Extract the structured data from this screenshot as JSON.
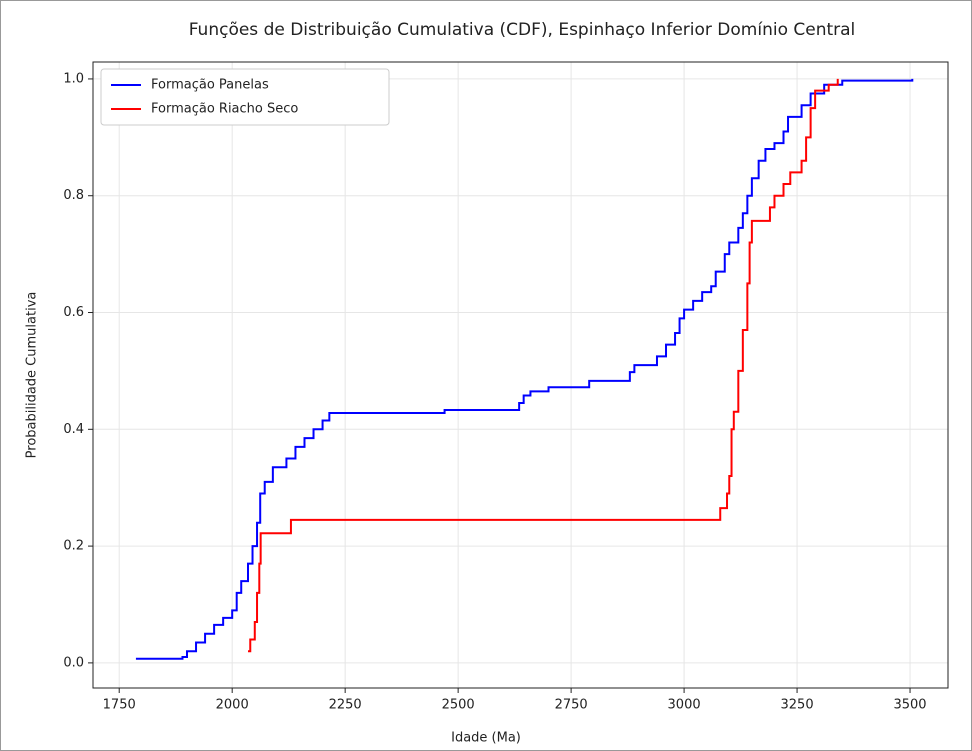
{
  "chart_data": {
    "type": "line",
    "step": "post",
    "title": "Funções de Distribuição Cumulativa (CDF), Espinhaço Inferior Domínio Central",
    "xlabel": "Idade (Ma)",
    "ylabel": "Probabilidade Cumulativa",
    "xlim": [
      1692,
      3584
    ],
    "ylim": [
      -0.043,
      1.029
    ],
    "xticks": [
      1750,
      2000,
      2250,
      2500,
      2750,
      3000,
      3250,
      3500
    ],
    "yticks": [
      {
        "value": 0,
        "label": "0.0"
      },
      0.2,
      0.4,
      0.6,
      0.8,
      {
        "value": 1,
        "label": "1.0"
      }
    ],
    "grid": true,
    "legend": "upper left",
    "series": [
      {
        "name": "Formação Panelas",
        "color": "#0000ff",
        "x": [
          1787,
          1890,
          1900,
          1920,
          1940,
          1960,
          1980,
          2000,
          2010,
          2020,
          2035,
          2045,
          2055,
          2062,
          2072,
          2090,
          2120,
          2140,
          2160,
          2180,
          2200,
          2215,
          2470,
          2635,
          2645,
          2660,
          2700,
          2790,
          2880,
          2890,
          2940,
          2960,
          2980,
          2990,
          3000,
          3020,
          3040,
          3060,
          3070,
          3090,
          3100,
          3120,
          3130,
          3140,
          3150,
          3165,
          3180,
          3200,
          3220,
          3230,
          3260,
          3280,
          3310,
          3350,
          3505
        ],
        "values": [
          0.007,
          0.01,
          0.02,
          0.035,
          0.05,
          0.065,
          0.077,
          0.09,
          0.12,
          0.14,
          0.17,
          0.2,
          0.24,
          0.29,
          0.31,
          0.335,
          0.35,
          0.37,
          0.385,
          0.4,
          0.415,
          0.428,
          0.433,
          0.445,
          0.458,
          0.465,
          0.472,
          0.483,
          0.498,
          0.51,
          0.525,
          0.545,
          0.565,
          0.59,
          0.605,
          0.62,
          0.635,
          0.645,
          0.67,
          0.7,
          0.72,
          0.745,
          0.77,
          0.8,
          0.83,
          0.86,
          0.88,
          0.89,
          0.91,
          0.935,
          0.955,
          0.975,
          0.99,
          0.997,
          1.0
        ]
      },
      {
        "name": "Formação Riacho Seco",
        "color": "#ff0000",
        "x": [
          2035,
          2040,
          2050,
          2055,
          2060,
          2063,
          2130,
          3080,
          3095,
          3100,
          3105,
          3110,
          3120,
          3130,
          3140,
          3145,
          3150,
          3190,
          3200,
          3220,
          3235,
          3260,
          3270,
          3280,
          3290,
          3320,
          3340
        ],
        "values": [
          0.02,
          0.04,
          0.07,
          0.12,
          0.17,
          0.222,
          0.245,
          0.265,
          0.29,
          0.32,
          0.4,
          0.43,
          0.5,
          0.57,
          0.65,
          0.72,
          0.757,
          0.78,
          0.8,
          0.82,
          0.84,
          0.86,
          0.9,
          0.95,
          0.98,
          0.99,
          1.0
        ]
      }
    ]
  }
}
